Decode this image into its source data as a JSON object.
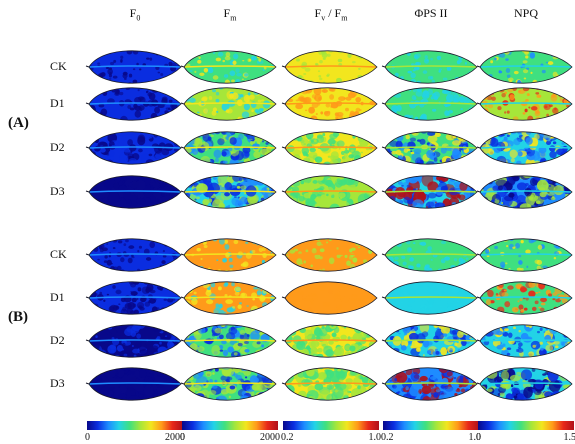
{
  "columns": [
    {
      "id": "f0",
      "html": "F<sub style=\"font-size:8px\">0</sub>",
      "label": "F0"
    },
    {
      "id": "fm",
      "html": "F<sub style=\"font-size:8px\">m</sub>",
      "label": "Fm"
    },
    {
      "id": "fvfm",
      "html": "F<sub style=\"font-size:8px\">v</sub> / F<sub style=\"font-size:8px\">m</sub>",
      "label": "Fv / Fm"
    },
    {
      "id": "phi",
      "html": "ΦPS II",
      "label": "ΦPS II"
    },
    {
      "id": "npq",
      "html": "NPQ",
      "label": "NPQ"
    }
  ],
  "panels": [
    {
      "label": "(A)",
      "rows": [
        "CK",
        "D1",
        "D2",
        "D3"
      ]
    },
    {
      "label": "(B)",
      "rows": [
        "CK",
        "D1",
        "D2",
        "D3"
      ]
    }
  ],
  "colorbars": [
    {
      "min": "0",
      "max": "2000"
    },
    {
      "min": "0",
      "max": "2000"
    },
    {
      "min": "0.2",
      "max": "1.0"
    },
    {
      "min": "0.2",
      "max": "1.0"
    },
    {
      "min": "0",
      "max": "1.5"
    }
  ],
  "colormap": [
    "#08088a",
    "#0a2de0",
    "#1e8cff",
    "#22d3e6",
    "#3fe080",
    "#a6e63a",
    "#f2e61e",
    "#ff9a1a",
    "#e8281a",
    "#b0101a"
  ]
}
